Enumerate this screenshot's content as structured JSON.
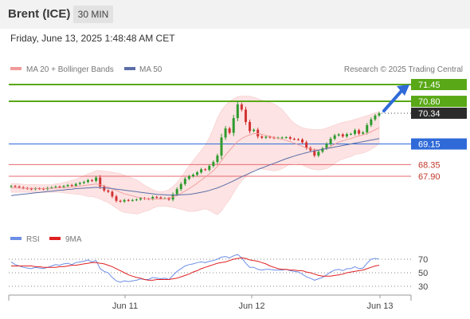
{
  "header": {
    "instrument": "Brent (ICE)",
    "interval": "30 MIN"
  },
  "timestamp": "Friday, June 13, 2025 1:48:48 AM CET",
  "legend": {
    "bb_label": "MA 20 + Bollinger Bands",
    "ma50_label": "MA 50",
    "credit": "Research © 2025 Trading Central"
  },
  "rsi_legend": {
    "rsi_label": "RSI",
    "ma_label": "9MA"
  },
  "colors": {
    "resistance": "#59a817",
    "pivot": "#2f6ad8",
    "support": "#e8686f",
    "bollinger_fill": "#fde3e3",
    "ma20": "#f19a9a",
    "ma50": "#5b6ea8",
    "bull_candle": "#2e9b2e",
    "bear_candle": "#d33333",
    "rsi": "#6c8ee6",
    "rsi_ma": "#e02020",
    "arrow": "#2f6ad8",
    "last_price_bg": "#2b2b2b"
  },
  "chart_data": [
    {
      "type": "candlestick",
      "x_ticks": [
        "Jun 11",
        "Jun 12",
        "Jun 13"
      ],
      "ylim": [
        66.6,
        71.5
      ],
      "levels": [
        {
          "value": 71.45,
          "label": "71.45",
          "kind": "resistance"
        },
        {
          "value": 70.8,
          "label": "70.80",
          "kind": "resistance"
        },
        {
          "value": 69.15,
          "label": "69.15",
          "kind": "pivot"
        },
        {
          "value": 68.35,
          "label": "68.35",
          "kind": "support"
        },
        {
          "value": 67.9,
          "label": "67.90",
          "kind": "support"
        }
      ],
      "last_price": "70.34",
      "close": [
        67.52,
        67.5,
        67.47,
        67.44,
        67.42,
        67.4,
        67.43,
        67.42,
        67.4,
        67.45,
        67.47,
        67.5,
        67.48,
        67.52,
        67.56,
        67.53,
        67.6,
        67.64,
        67.68,
        67.75,
        67.72,
        67.85,
        67.5,
        67.35,
        67.3,
        67.12,
        66.95,
        66.92,
        66.98,
        66.96,
        66.98,
        67.0,
        67.05,
        67.03,
        67.02,
        67.1,
        67.08,
        67.04,
        67.05,
        67.0,
        67.2,
        67.4,
        67.6,
        67.8,
        67.9,
        67.96,
        68.05,
        68.17,
        68.15,
        68.3,
        68.45,
        68.7,
        69.4,
        69.75,
        69.58,
        70.15,
        70.68,
        70.48,
        70.0,
        69.65,
        69.7,
        69.44,
        69.39,
        69.43,
        69.4,
        69.38,
        69.39,
        69.4,
        69.41,
        69.35,
        69.33,
        69.32,
        69.21,
        69.0,
        68.9,
        68.7,
        68.85,
        68.98,
        69.15,
        69.35,
        69.48,
        69.52,
        69.44,
        69.53,
        69.54,
        69.68,
        69.55,
        69.6,
        69.88,
        70.1,
        70.25,
        70.34
      ],
      "ma20": [
        67.45,
        67.45,
        67.44,
        67.44,
        67.43,
        67.43,
        67.43,
        67.43,
        67.42,
        67.43,
        67.43,
        67.44,
        67.45,
        67.46,
        67.47,
        67.48,
        67.5,
        67.52,
        67.54,
        67.56,
        67.58,
        67.6,
        67.57,
        67.52,
        67.48,
        67.42,
        67.35,
        67.28,
        67.22,
        67.18,
        67.14,
        67.1,
        67.07,
        67.04,
        67.02,
        67.02,
        67.02,
        67.02,
        67.03,
        67.05,
        67.1,
        67.16,
        67.24,
        67.33,
        67.42,
        67.52,
        67.63,
        67.75,
        67.87,
        67.99,
        68.12,
        68.28,
        68.5,
        68.72,
        68.9,
        69.08,
        69.25,
        69.36,
        69.44,
        69.5,
        69.55,
        69.55,
        69.52,
        69.48,
        69.44,
        69.4,
        69.37,
        69.33,
        69.29,
        69.24,
        69.18,
        69.12,
        69.06,
        69.0,
        68.96,
        68.93,
        68.92,
        68.94,
        68.98,
        69.05,
        69.14,
        69.22,
        69.27,
        69.32,
        69.36,
        69.42,
        69.46,
        69.5,
        69.55,
        69.62,
        69.7,
        69.78
      ],
      "bb_upper": [
        67.62,
        67.62,
        67.6,
        67.59,
        67.58,
        67.58,
        67.58,
        67.57,
        67.57,
        67.57,
        67.58,
        67.6,
        67.62,
        67.66,
        67.7,
        67.74,
        67.79,
        67.85,
        67.92,
        68.0,
        68.05,
        68.12,
        68.12,
        68.1,
        68.08,
        68.06,
        68.03,
        68.0,
        67.94,
        67.88,
        67.82,
        67.76,
        67.66,
        67.55,
        67.46,
        67.38,
        67.32,
        67.3,
        67.32,
        67.38,
        67.5,
        67.66,
        67.86,
        68.08,
        68.3,
        68.5,
        68.7,
        68.9,
        69.1,
        69.4,
        69.75,
        70.15,
        70.45,
        70.65,
        70.8,
        70.9,
        70.98,
        71.0,
        71.0,
        71.0,
        70.95,
        70.9,
        70.85,
        70.8,
        70.75,
        70.7,
        70.6,
        70.48,
        70.3,
        70.1,
        69.95,
        69.85,
        69.78,
        69.74,
        69.72,
        69.7,
        69.7,
        69.72,
        69.76,
        69.82,
        69.88,
        69.94,
        69.98,
        70.02,
        70.06,
        70.1,
        70.15,
        70.2,
        70.24,
        70.3,
        70.36,
        70.4
      ],
      "bb_lower": [
        67.28,
        67.28,
        67.28,
        67.29,
        67.28,
        67.28,
        67.28,
        67.29,
        67.27,
        67.29,
        67.28,
        67.28,
        67.28,
        67.26,
        67.24,
        67.22,
        67.21,
        67.19,
        67.16,
        67.12,
        67.11,
        67.08,
        67.02,
        66.94,
        66.88,
        66.78,
        66.67,
        66.56,
        66.5,
        66.48,
        66.46,
        66.44,
        66.48,
        66.53,
        66.58,
        66.66,
        66.72,
        66.74,
        66.74,
        66.72,
        66.7,
        66.66,
        66.62,
        66.58,
        66.54,
        66.54,
        66.56,
        66.6,
        66.64,
        66.58,
        66.49,
        66.41,
        66.55,
        66.79,
        67.0,
        67.26,
        67.52,
        67.72,
        67.88,
        68.0,
        68.15,
        68.2,
        68.19,
        68.16,
        68.13,
        68.1,
        68.14,
        68.18,
        68.28,
        68.38,
        68.41,
        68.39,
        68.34,
        68.26,
        68.2,
        68.16,
        68.14,
        68.16,
        68.2,
        68.28,
        68.4,
        68.5,
        68.56,
        68.62,
        68.66,
        68.74,
        68.77,
        68.8,
        68.86,
        68.94,
        69.04,
        69.16
      ],
      "ma50": [
        67.15,
        67.17,
        67.19,
        67.21,
        67.22,
        67.24,
        67.26,
        67.27,
        67.29,
        67.31,
        67.32,
        67.34,
        67.36,
        67.37,
        67.39,
        67.4,
        67.42,
        67.43,
        67.44,
        67.45,
        67.46,
        67.47,
        67.46,
        67.45,
        67.44,
        67.42,
        67.4,
        67.38,
        67.36,
        67.34,
        67.32,
        67.3,
        67.28,
        67.26,
        67.24,
        67.22,
        67.2,
        67.19,
        67.18,
        67.17,
        67.17,
        67.17,
        67.18,
        67.19,
        67.2,
        67.22,
        67.25,
        67.28,
        67.31,
        67.35,
        67.4,
        67.45,
        67.51,
        67.58,
        67.65,
        67.72,
        67.8,
        67.88,
        67.95,
        68.02,
        68.09,
        68.16,
        68.22,
        68.28,
        68.34,
        68.4,
        68.46,
        68.52,
        68.58,
        68.63,
        68.68,
        68.73,
        68.77,
        68.81,
        68.85,
        68.88,
        68.91,
        68.94,
        68.97,
        69.0,
        69.03,
        69.06,
        69.09,
        69.12,
        69.15,
        69.18,
        69.21,
        69.24,
        69.27,
        69.3,
        69.33,
        69.36
      ],
      "projection": {
        "from": 70.34,
        "to": 71.45
      }
    },
    {
      "type": "line",
      "title": "RSI",
      "y_ticks": [
        70,
        50,
        30
      ],
      "ylim": [
        20,
        80
      ],
      "series": [
        {
          "name": "RSI",
          "values": [
            66,
            62,
            60,
            58,
            57,
            56,
            58,
            57,
            56,
            58,
            60,
            62,
            61,
            63,
            64,
            62,
            65,
            66,
            67,
            69,
            66,
            68,
            56,
            52,
            50,
            43,
            38,
            36,
            38,
            37,
            38,
            39,
            41,
            40,
            40,
            43,
            42,
            41,
            42,
            40,
            46,
            52,
            56,
            60,
            62,
            63,
            65,
            66,
            65,
            67,
            68,
            70,
            73,
            74,
            72,
            75,
            77,
            72,
            64,
            58,
            58,
            55,
            54,
            55,
            55,
            54,
            54,
            54,
            55,
            53,
            52,
            51,
            48,
            44,
            42,
            39,
            41,
            43,
            47,
            51,
            54,
            55,
            53,
            56,
            56,
            59,
            56,
            57,
            64,
            70,
            71,
            70
          ]
        },
        {
          "name": "9MA",
          "values": [
            60,
            60,
            60,
            60,
            60,
            60,
            59,
            59,
            58,
            58,
            58,
            58,
            59,
            59,
            60,
            61,
            61,
            62,
            63,
            64,
            65,
            65,
            64,
            63,
            61,
            59,
            56,
            53,
            50,
            47,
            45,
            43,
            42,
            40,
            39,
            39,
            40,
            40,
            40,
            40,
            41,
            42,
            44,
            46,
            48,
            51,
            53,
            56,
            58,
            60,
            62,
            64,
            65,
            66,
            68,
            70,
            71,
            72,
            71,
            69,
            68,
            67,
            65,
            63,
            60,
            58,
            56,
            55,
            55,
            54,
            54,
            53,
            53,
            51,
            50,
            48,
            46,
            45,
            45,
            45,
            46,
            47,
            48,
            50,
            51,
            52,
            53,
            54,
            56,
            58,
            60,
            61
          ]
        }
      ]
    }
  ]
}
